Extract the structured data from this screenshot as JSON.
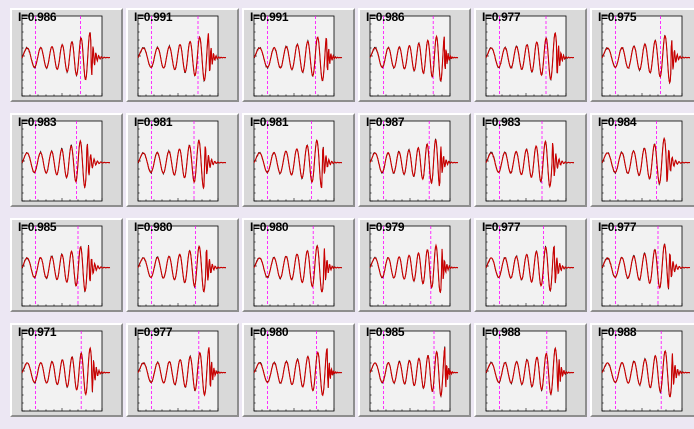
{
  "chart_data": {
    "type": "line",
    "layout": {
      "rows": 4,
      "cols": 6
    },
    "colors": {
      "data": "#000000",
      "fit": "#cc0000",
      "marker": "#ff00ff",
      "frame_bg": "#f2f2f2",
      "page_bg": "#ece7f3"
    },
    "panels": [
      {
        "label": "I=0.986"
      },
      {
        "label": "I=0.991"
      },
      {
        "label": "I=0.991"
      },
      {
        "label": "I=0.986"
      },
      {
        "label": "I=0.977"
      },
      {
        "label": "I=0.975"
      },
      {
        "label": "I=0.983"
      },
      {
        "label": "I=0.981"
      },
      {
        "label": "I=0.981"
      },
      {
        "label": "I=0.987"
      },
      {
        "label": "I=0.983"
      },
      {
        "label": "I=0.984"
      },
      {
        "label": "I=0.985"
      },
      {
        "label": "I=0.980"
      },
      {
        "label": "I=0.980"
      },
      {
        "label": "I=0.979"
      },
      {
        "label": "I=0.977"
      },
      {
        "label": "I=0.977"
      },
      {
        "label": "I=0.971"
      },
      {
        "label": "I=0.977"
      },
      {
        "label": "I=0.980"
      },
      {
        "label": "I=0.985"
      },
      {
        "label": "I=0.988"
      },
      {
        "label": "I=0.988"
      }
    ]
  }
}
